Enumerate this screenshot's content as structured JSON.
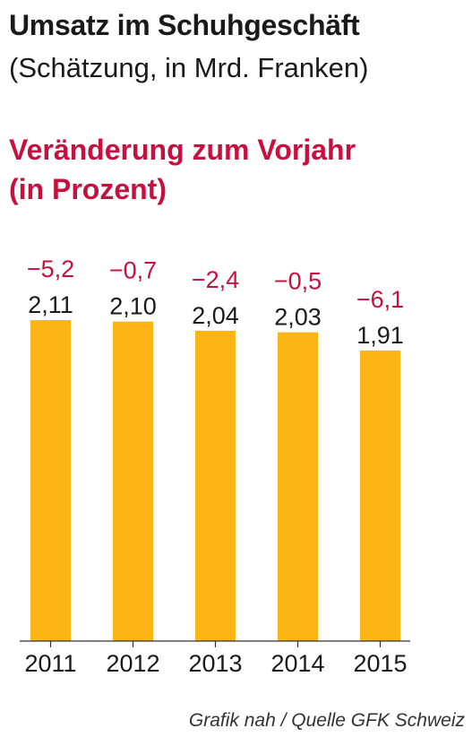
{
  "title": "Umsatz im Schuhgeschäft",
  "subtitle": "(Schätzung, in Mrd. Franken)",
  "change_title": "Veränderung zum Vorjahr (in Prozent)",
  "source": "Grafik nah / Quelle GFK Schweiz",
  "colors": {
    "bar": "#fbb616",
    "change": "#c8103e",
    "text": "#1a1a1a",
    "axis": "#333333"
  },
  "chart_data": {
    "type": "bar",
    "categories": [
      "2011",
      "2012",
      "2013",
      "2014",
      "2015"
    ],
    "values": [
      2.11,
      2.1,
      2.04,
      2.03,
      1.91
    ],
    "value_labels": [
      "2,11",
      "2,10",
      "2,04",
      "2,03",
      "1,91"
    ],
    "changes": [
      -5.2,
      -0.7,
      -2.4,
      -0.5,
      -6.1
    ],
    "change_labels": [
      "−5,2",
      "−0,7",
      "−2,4",
      "−0,5",
      "−6,1"
    ],
    "ylim": [
      0,
      2.11
    ],
    "grid": false
  }
}
